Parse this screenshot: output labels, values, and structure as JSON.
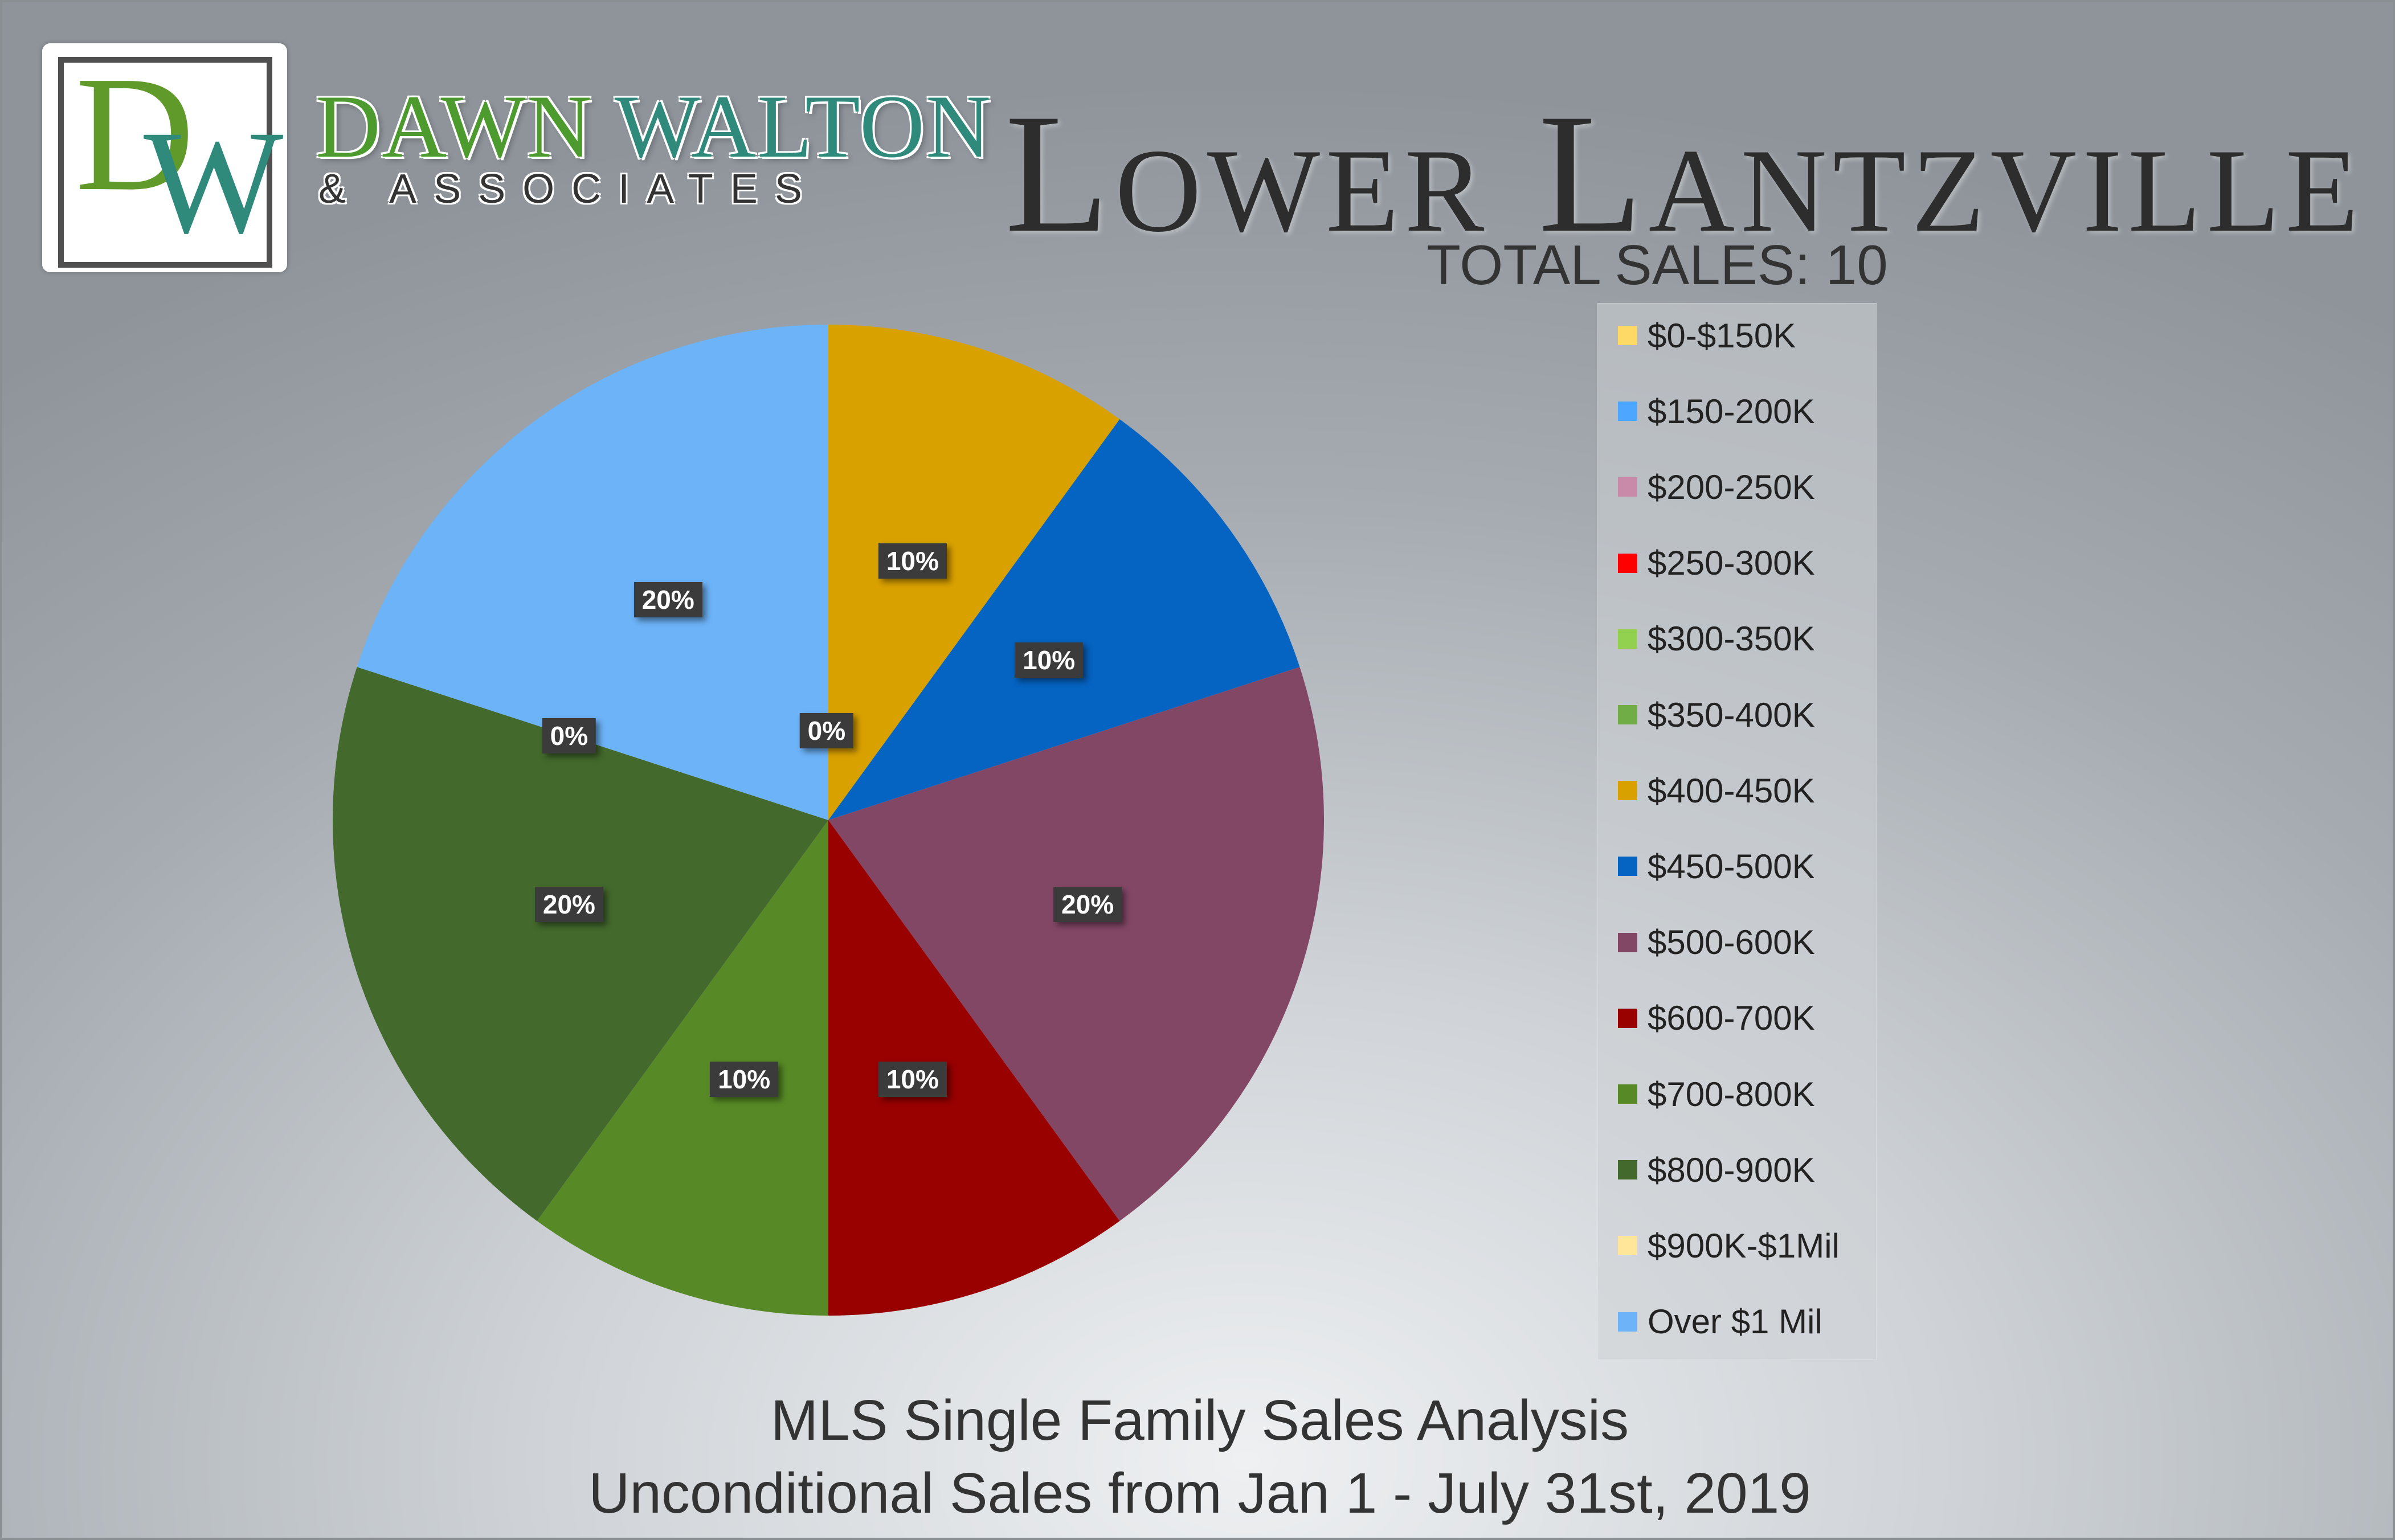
{
  "brand": {
    "logo_letters": "DW",
    "name_part1": "DAWN",
    "name_part2": "WALTON",
    "subtitle": "& ASSOCIATES"
  },
  "header": {
    "title": "Lower Lantzville",
    "total_sales": "TOTAL SALES: 10"
  },
  "footer": {
    "line1": "MLS Single Family Sales Analysis",
    "line2": "Unconditional Sales from Jan 1 - July 31st, 2019"
  },
  "chart_data": {
    "type": "pie",
    "title": "Lower Lantzville",
    "legend_position": "right",
    "slices": [
      {
        "label": "$0-$150K",
        "value": 0,
        "pct_label": "0%",
        "color": "#ffd966",
        "show_label": false
      },
      {
        "label": "$150-200K",
        "value": 0,
        "pct_label": "0%",
        "color": "#4da6ff",
        "show_label": false
      },
      {
        "label": "$200-250K",
        "value": 0,
        "pct_label": "0%",
        "color": "#c88aa8",
        "show_label": false
      },
      {
        "label": "$250-300K",
        "value": 0,
        "pct_label": "0%",
        "color": "#ff0000",
        "show_label": false
      },
      {
        "label": "$300-350K",
        "value": 0,
        "pct_label": "0%",
        "color": "#92d050",
        "show_label": false
      },
      {
        "label": "$350-400K",
        "value": 0,
        "pct_label": "0%",
        "color": "#70ad47",
        "show_label": false
      },
      {
        "label": "$400-450K",
        "value": 10,
        "pct_label": "10%",
        "color": "#d9a100",
        "show_label": true
      },
      {
        "label": "$450-500K",
        "value": 10,
        "pct_label": "10%",
        "color": "#0563c1",
        "show_label": true
      },
      {
        "label": "$500-600K",
        "value": 20,
        "pct_label": "20%",
        "color": "#834766",
        "show_label": true
      },
      {
        "label": "$600-700K",
        "value": 10,
        "pct_label": "10%",
        "color": "#990000",
        "show_label": true
      },
      {
        "label": "$700-800K",
        "value": 10,
        "pct_label": "10%",
        "color": "#578a26",
        "show_label": true
      },
      {
        "label": "$800-900K",
        "value": 20,
        "pct_label": "20%",
        "color": "#43692c",
        "show_label": true
      },
      {
        "label": "$900K-$1Mil",
        "value": 0,
        "pct_label": "0%",
        "color": "#ffe699",
        "show_label": true
      },
      {
        "label": "Over $1 Mil",
        "value": 20,
        "pct_label": "20%",
        "color": "#6db3f8",
        "show_label": true
      }
    ],
    "extra_zero_labels": [
      "0%"
    ]
  }
}
